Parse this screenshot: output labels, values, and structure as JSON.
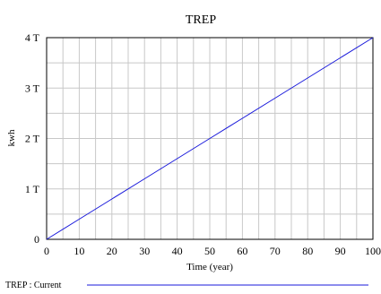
{
  "chart_data": {
    "type": "line",
    "title": "TREP",
    "xlabel": "Time (year)",
    "ylabel": "kwh",
    "xlim": [
      0,
      100
    ],
    "ylim": [
      0,
      4000000000000
    ],
    "grid": true,
    "x_ticks": [
      0,
      10,
      20,
      30,
      40,
      50,
      60,
      70,
      80,
      90,
      100
    ],
    "x_tick_labels": [
      "0",
      "10",
      "20",
      "30",
      "40",
      "50",
      "60",
      "70",
      "80",
      "90",
      "100"
    ],
    "y_ticks": [
      0,
      1000000000000,
      2000000000000,
      3000000000000,
      4000000000000
    ],
    "y_tick_labels": [
      "0",
      "1 T",
      "2 T",
      "3 T",
      "4 T"
    ],
    "legend": {
      "placement": "bottom-left",
      "entries": [
        {
          "label": "TREP : Current",
          "color": "#1a1adb"
        }
      ]
    },
    "series": [
      {
        "name": "TREP : Current",
        "color": "#1a1adb",
        "x": [
          0,
          10,
          20,
          30,
          40,
          50,
          60,
          70,
          80,
          90,
          100
        ],
        "values": [
          0,
          400000000000,
          800000000000,
          1200000000000,
          1600000000000,
          2000000000000,
          2400000000000,
          2800000000000,
          3200000000000,
          3600000000000,
          4000000000000
        ]
      }
    ]
  }
}
